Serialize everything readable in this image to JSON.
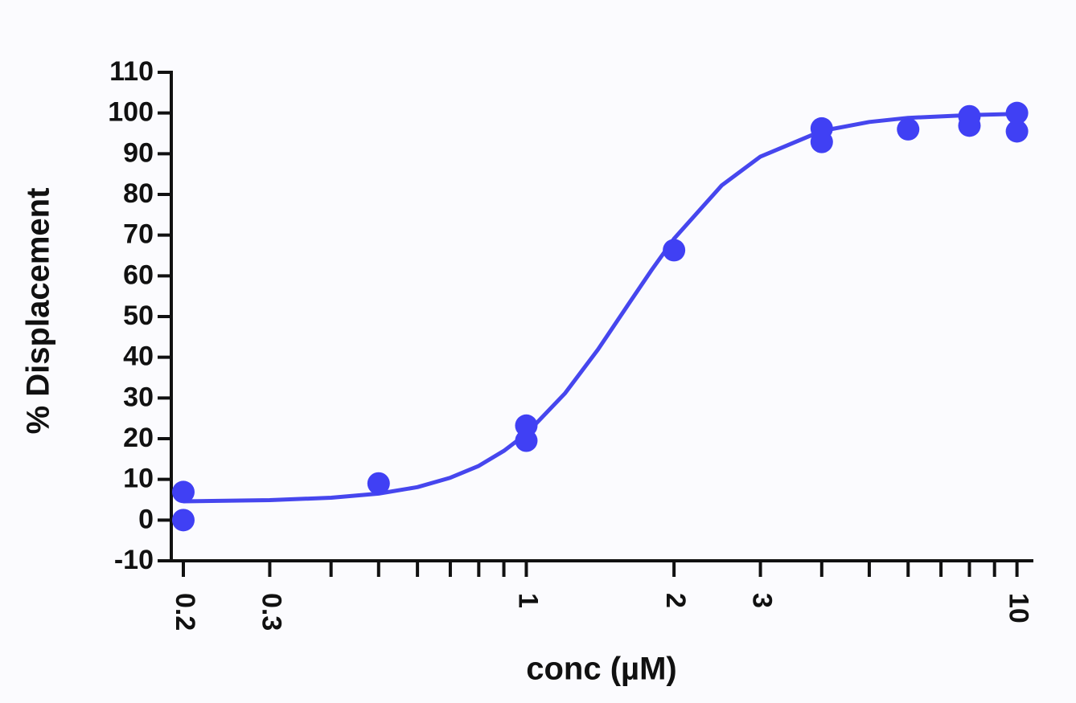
{
  "chart_data": {
    "type": "scatter",
    "x_label": "conc (µM)",
    "y_label": "% Displacement",
    "xscale": "log",
    "xlim": [
      0.189,
      10.8
    ],
    "ylim": [
      -10,
      110
    ],
    "xticks": [
      0.2,
      0.3,
      1,
      2,
      3,
      10
    ],
    "xminor_ticks": [
      0.4,
      0.5,
      0.6,
      0.7,
      0.8,
      0.9,
      4,
      5,
      6,
      7,
      8,
      9
    ],
    "yticks": [
      -10,
      0,
      10,
      20,
      30,
      40,
      50,
      60,
      70,
      80,
      90,
      100,
      110
    ],
    "points": {
      "color": "#4040f4",
      "x": [
        0.2,
        0.2,
        0.5,
        1,
        1,
        2,
        4,
        4,
        6,
        8,
        8,
        10,
        10
      ],
      "values": [
        6.9,
        0,
        9,
        23.2,
        19.5,
        66.3,
        96.2,
        92.9,
        96,
        99.2,
        96.9,
        100,
        95.5
      ]
    },
    "fit": {
      "color": "#4646ee",
      "x": [
        0.2,
        0.3,
        0.4,
        0.5,
        0.6,
        0.7,
        0.8,
        0.9,
        1,
        1.2,
        1.4,
        1.6,
        1.8,
        2,
        2.5,
        3,
        4,
        5,
        6,
        8,
        10
      ],
      "values": [
        4.6,
        4.9,
        5.5,
        6.5,
        8.1,
        10.4,
        13.3,
        17,
        21.2,
        31.2,
        41.9,
        52.3,
        61.4,
        69.1,
        82.2,
        89.3,
        95.6,
        97.8,
        98.8,
        99.5,
        99.8
      ]
    }
  }
}
